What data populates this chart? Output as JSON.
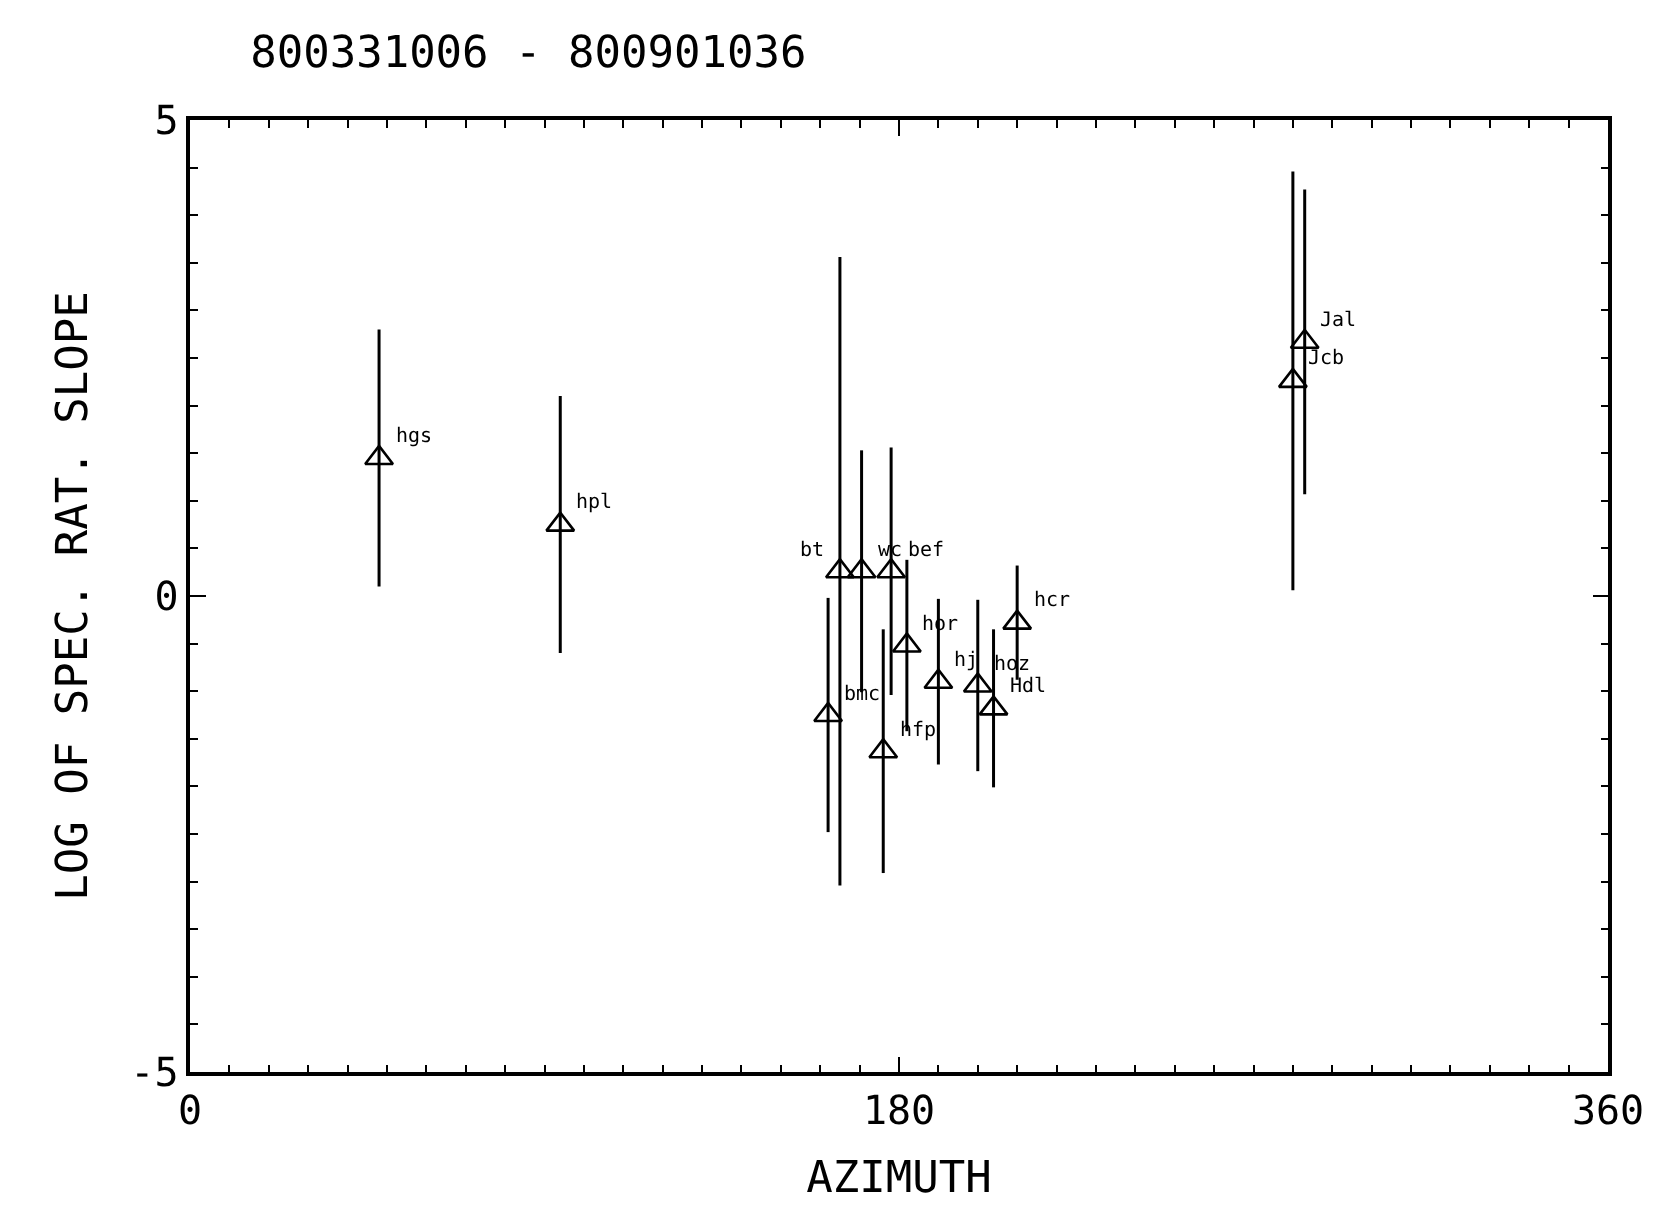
{
  "chart_data": {
    "type": "scatter",
    "title": "800331006 - 800901036",
    "xlabel": "AZIMUTH",
    "ylabel": "LOG OF SPEC. RAT. SLOPE",
    "x": [
      48,
      94,
      162,
      165,
      170.5,
      178,
      182,
      176,
      190,
      200,
      204,
      210,
      283,
      280
    ],
    "series": [
      {
        "color": "#000000",
        "values": [
          1.45,
          0.75,
          -1.25,
          0.26,
          0.26,
          0.26,
          -0.52,
          -1.63,
          -0.9,
          -0.94,
          -1.18,
          -0.28,
          2.67,
          2.26
        ],
        "errors": [
          1.35,
          1.35,
          1.23,
          3.3,
          1.27,
          1.3,
          0.9,
          1.28,
          0.87,
          0.9,
          0.83,
          0.6,
          1.6,
          2.2
        ]
      }
    ],
    "marker": "triangle",
    "xlim": [
      0,
      360
    ],
    "ylim": [
      -5,
      5
    ],
    "xticks": [
      0,
      180,
      360
    ],
    "yticks": [
      -5,
      0,
      5
    ],
    "legend": false,
    "annotations": [
      {
        "text": "hgs",
        "x": 48,
        "y": 1.45
      },
      {
        "text": "hpl",
        "x": 94,
        "y": 0.75
      },
      {
        "text": "bmc",
        "x": 162,
        "y": -1.25
      },
      {
        "text": "bt",
        "x": 165,
        "y": 0.26
      },
      {
        "text": "wc",
        "x": 170.5,
        "y": 0.26
      },
      {
        "text": "bef",
        "x": 178,
        "y": 0.26
      },
      {
        "text": "hor",
        "x": 182,
        "y": -0.52
      },
      {
        "text": "hfp",
        "x": 176,
        "y": -1.63
      },
      {
        "text": "hj",
        "x": 190,
        "y": -0.9
      },
      {
        "text": "hoz",
        "x": 200,
        "y": -0.94
      },
      {
        "text": "Hdl",
        "x": 204,
        "y": -1.18
      },
      {
        "text": "hcr",
        "x": 210,
        "y": -0.28
      },
      {
        "text": "Jal",
        "x": 283,
        "y": 2.67
      },
      {
        "text": "Jcb",
        "x": 280,
        "y": 2.26
      }
    ]
  }
}
